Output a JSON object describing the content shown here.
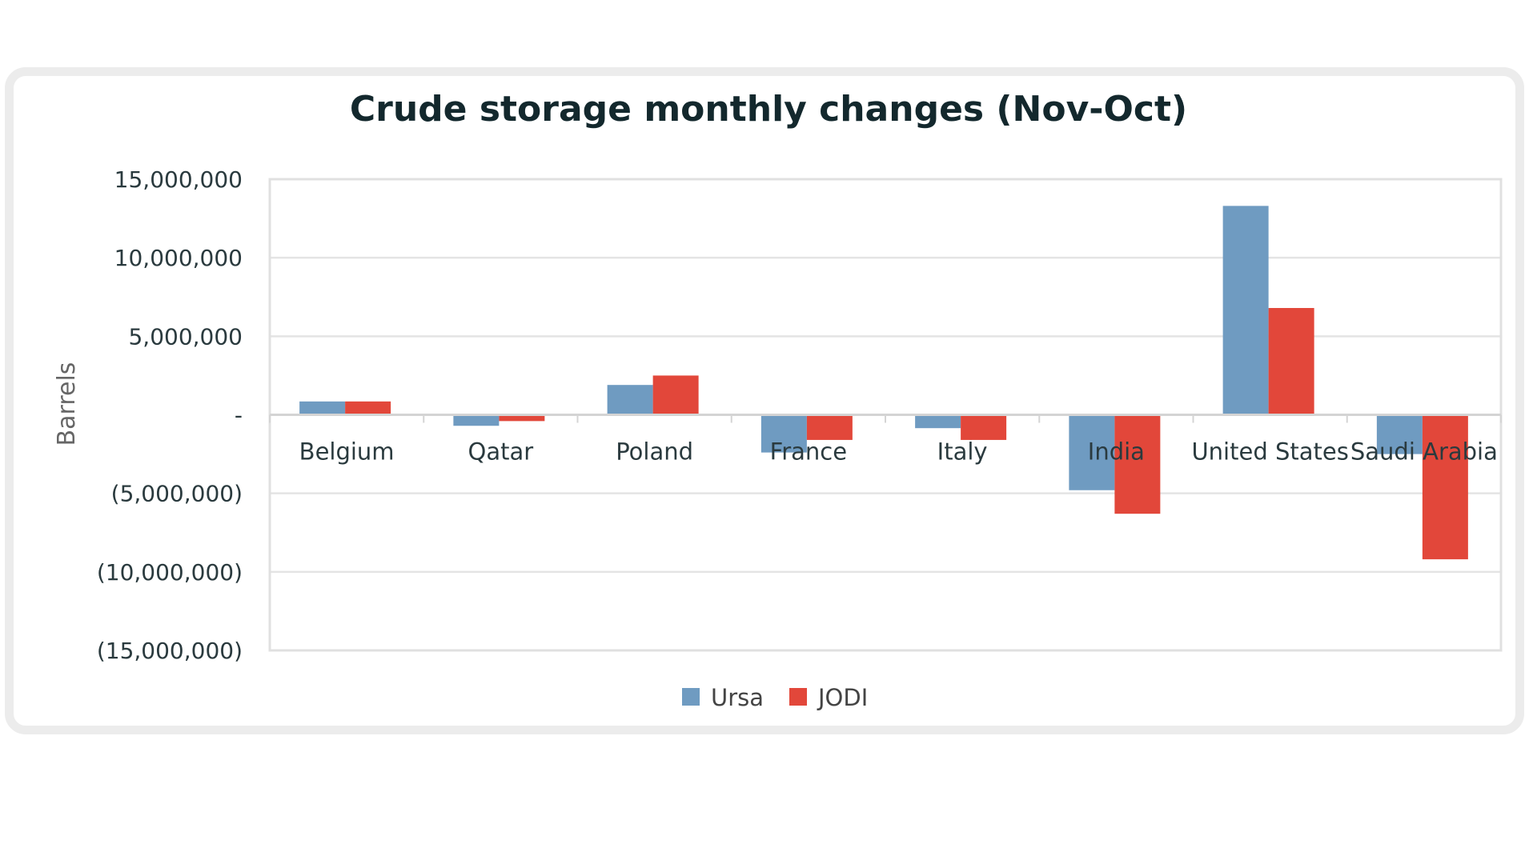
{
  "chart_data": {
    "type": "bar",
    "title": "Crude storage monthly changes (Nov-Oct)",
    "xlabel": "",
    "ylabel": "Barrels",
    "ylim": [
      -15000000,
      15000000
    ],
    "yticks": [
      15000000,
      10000000,
      5000000,
      0,
      -5000000,
      -10000000,
      -15000000
    ],
    "ytick_labels": [
      "15,000,000",
      "10,000,000",
      "5,000,000",
      "-",
      "(5,000,000)",
      "(10,000,000)",
      "(15,000,000)"
    ],
    "categories": [
      "Belgium",
      "Qatar",
      "Poland",
      "France",
      "Italy",
      "India",
      "United States",
      "Saudi Arabia"
    ],
    "series": [
      {
        "name": "Ursa",
        "color": "#6f9bc1",
        "values": [
          850000,
          -700000,
          1900000,
          -2400000,
          -850000,
          -4800000,
          13300000,
          -2500000
        ]
      },
      {
        "name": "JODI",
        "color": "#e2473a",
        "values": [
          850000,
          -400000,
          2500000,
          -1600000,
          -1600000,
          -6300000,
          6800000,
          -9200000
        ]
      }
    ],
    "grid": true,
    "legend_position": "bottom-center"
  }
}
